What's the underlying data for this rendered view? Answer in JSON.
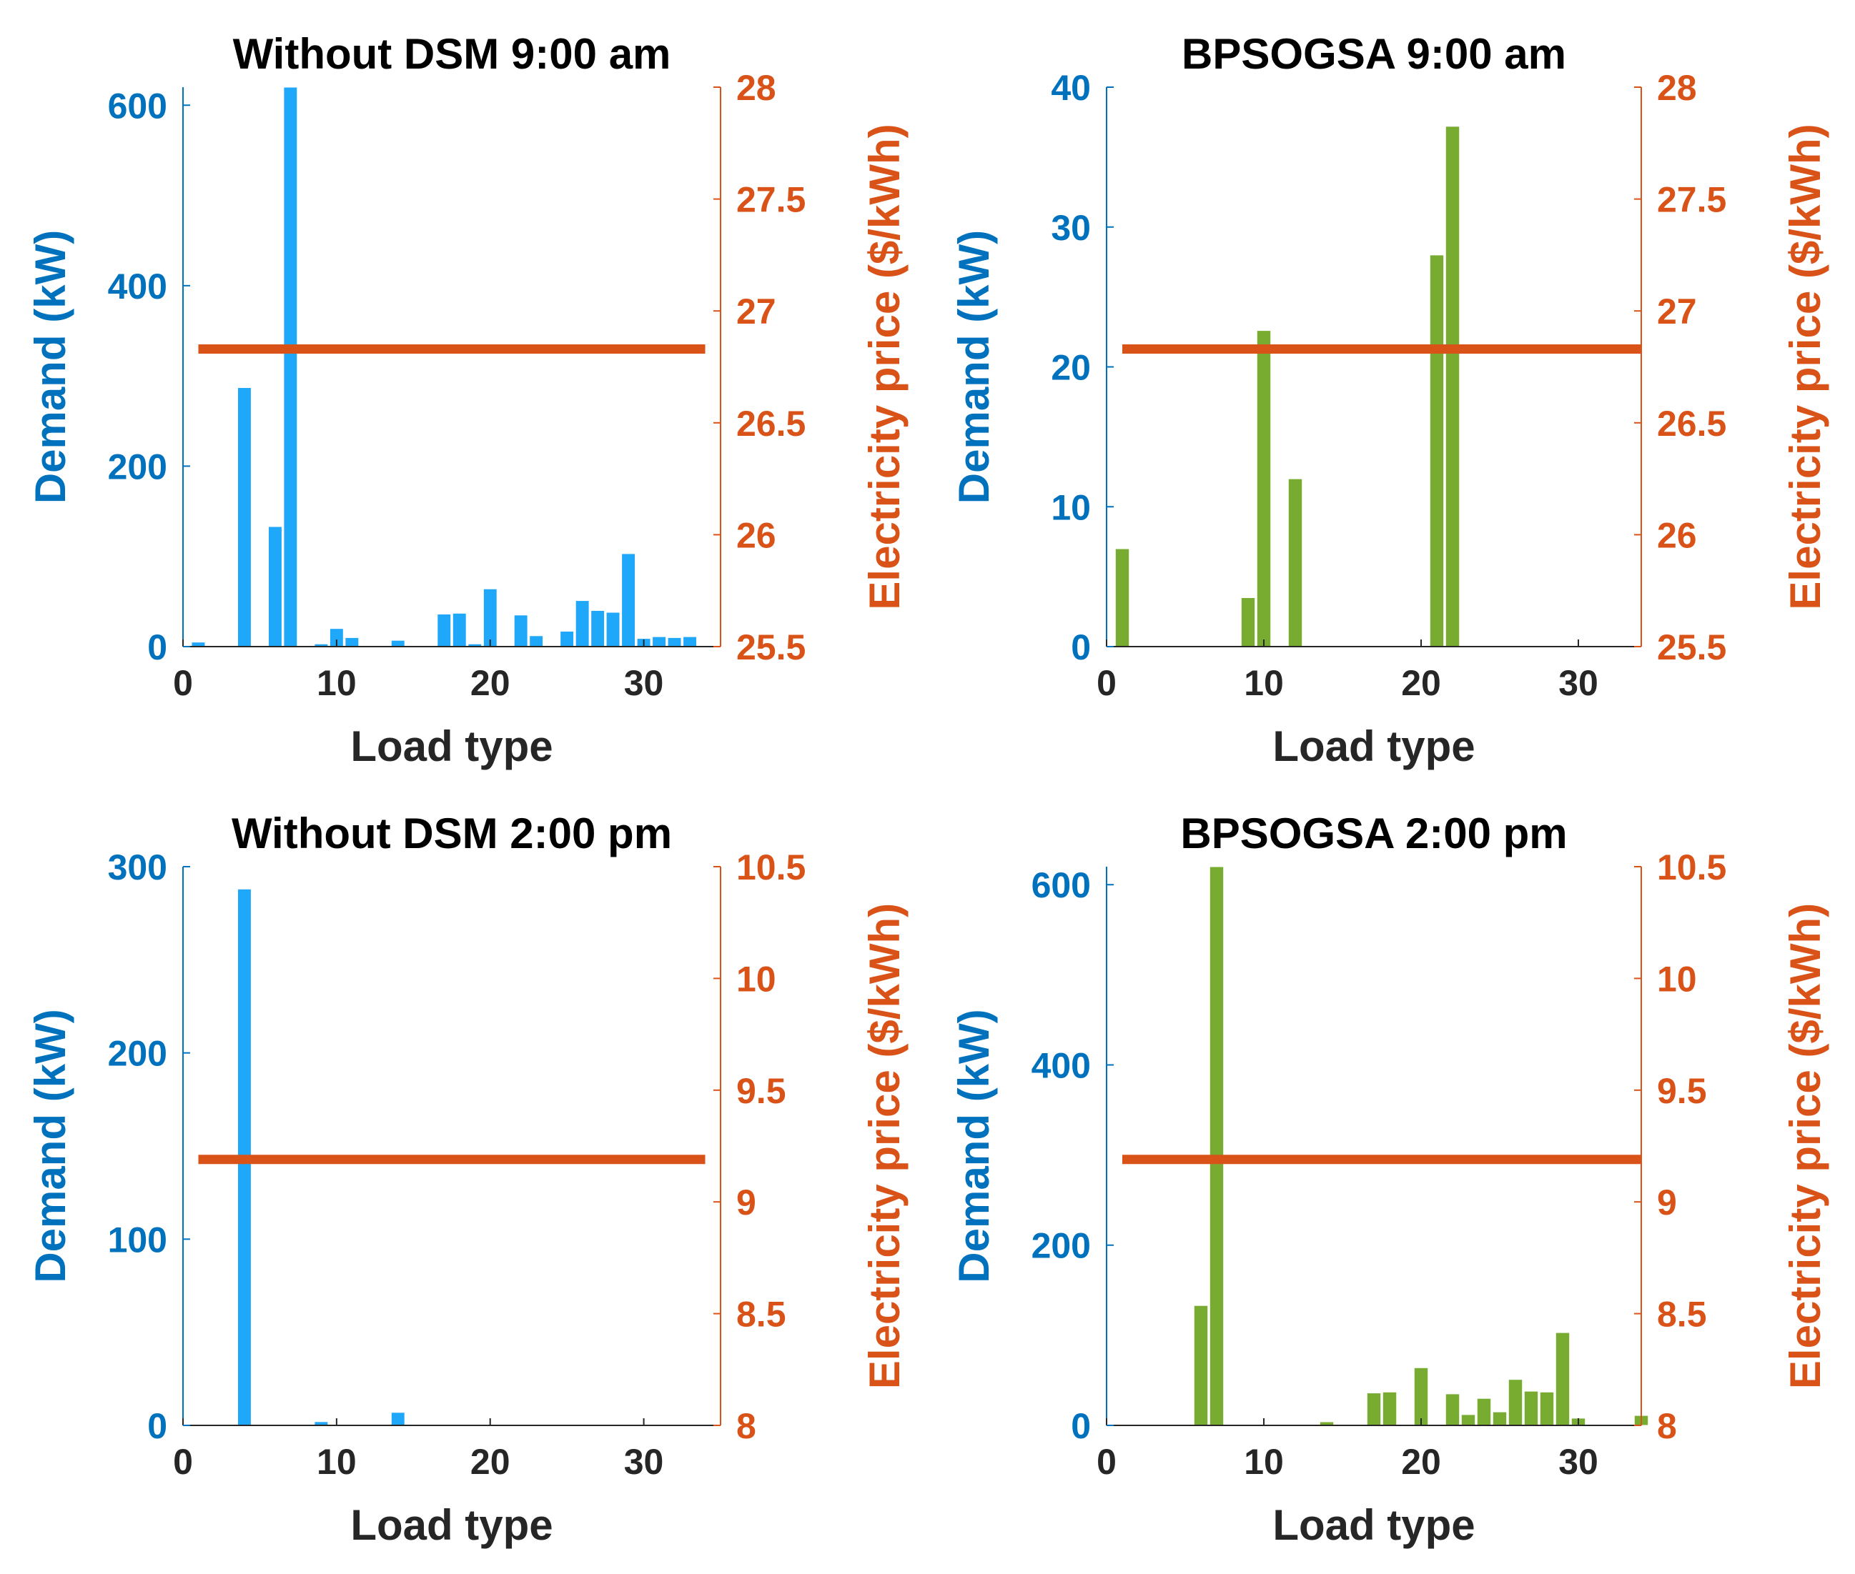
{
  "colors": {
    "demand_axis": "#0072BD",
    "price_axis": "#D95319",
    "bar_without_dsm": "#1FA7FA",
    "bar_bpsogsa": "#77AC30",
    "price_line": "#D95319",
    "axis_frame": "#262626"
  },
  "chart_data": [
    {
      "type": "bar",
      "title": "Without DSM 9:00 am",
      "xlabel": "Load type",
      "ylabel": "Demand (kW)",
      "ylabel_right": "Electricity price ($/kWh)",
      "bar_color_key": "bar_without_dsm",
      "xlim": [
        0,
        35
      ],
      "xticks": [
        "0",
        "10",
        "20",
        "30"
      ],
      "ylim": [
        0,
        620
      ],
      "yticks": [
        "0",
        "200",
        "400",
        "600"
      ],
      "ylim_right": [
        25.5,
        28
      ],
      "yticks_right": [
        "25.5",
        "26",
        "26.5",
        "27",
        "27.5",
        "28"
      ],
      "price_line": {
        "x_start": 1,
        "x_end": 34,
        "value": 26.83
      },
      "bars": {
        "x": [
          1,
          4,
          6,
          7,
          9,
          10,
          11,
          14,
          17,
          18,
          19,
          20,
          22,
          23,
          25,
          26,
          27,
          28,
          29,
          30,
          31,
          32,
          33
        ],
        "values": [
          5,
          287,
          133,
          620,
          3,
          20,
          10,
          7,
          36,
          37,
          3,
          64,
          35,
          12,
          17,
          51,
          40,
          38,
          103,
          9,
          11,
          10,
          11
        ]
      }
    },
    {
      "type": "bar",
      "title": "BPSOGSA 9:00 am",
      "xlabel": "Load type",
      "ylabel": "Demand (kW)",
      "ylabel_right": "Electricity price ($/kWh)",
      "bar_color_key": "bar_bpsogsa",
      "xlim": [
        0,
        34
      ],
      "xticks": [
        "0",
        "10",
        "20",
        "30"
      ],
      "ylim": [
        0,
        40
      ],
      "yticks": [
        "0",
        "10",
        "20",
        "30",
        "40"
      ],
      "ylim_right": [
        25.5,
        28
      ],
      "yticks_right": [
        "25.5",
        "26",
        "26.5",
        "27",
        "27.5",
        "28"
      ],
      "price_line": {
        "x_start": 1,
        "x_end": 34,
        "value": 26.83
      },
      "bars": {
        "x": [
          1,
          9,
          10,
          12,
          21,
          22
        ],
        "values": [
          7,
          3.5,
          22.6,
          12,
          28,
          37.2
        ]
      }
    },
    {
      "type": "bar",
      "title": "Without DSM 2:00 pm",
      "xlabel": "Load type",
      "ylabel": "Demand (kW)",
      "ylabel_right": "Electricity price ($/kWh)",
      "bar_color_key": "bar_without_dsm",
      "xlim": [
        0,
        35
      ],
      "xticks": [
        "0",
        "10",
        "20",
        "30"
      ],
      "ylim": [
        0,
        300
      ],
      "yticks": [
        "0",
        "100",
        "200",
        "300"
      ],
      "ylim_right": [
        8,
        10.5
      ],
      "yticks_right": [
        "8",
        "8.5",
        "9",
        "9.5",
        "10",
        "10.5"
      ],
      "price_line": {
        "x_start": 1,
        "x_end": 34,
        "value": 9.19
      },
      "bars": {
        "x": [
          4,
          9,
          14
        ],
        "values": [
          288,
          2,
          7
        ]
      }
    },
    {
      "type": "bar",
      "title": "BPSOGSA 2:00 pm",
      "xlabel": "Load type",
      "ylabel": "Demand (kW)",
      "ylabel_right": "Electricity price ($/kWh)",
      "bar_color_key": "bar_bpsogsa",
      "xlim": [
        0,
        34
      ],
      "xticks": [
        "0",
        "10",
        "20",
        "30"
      ],
      "ylim": [
        0,
        620
      ],
      "yticks": [
        "0",
        "200",
        "400",
        "600"
      ],
      "ylim_right": [
        8,
        10.5
      ],
      "yticks_right": [
        "8",
        "8.5",
        "9",
        "9.5",
        "10",
        "10.5"
      ],
      "price_line": {
        "x_start": 1,
        "x_end": 34,
        "value": 9.19
      },
      "bars": {
        "x": [
          2,
          3,
          6,
          7,
          9,
          14,
          17,
          18,
          20,
          22,
          23,
          24,
          25,
          26,
          27,
          28,
          29,
          30,
          34
        ],
        "values": [
          1,
          1,
          133,
          620,
          1,
          4,
          36,
          37,
          64,
          35,
          12,
          30,
          15,
          51,
          38,
          37,
          103,
          8,
          11
        ]
      }
    }
  ]
}
